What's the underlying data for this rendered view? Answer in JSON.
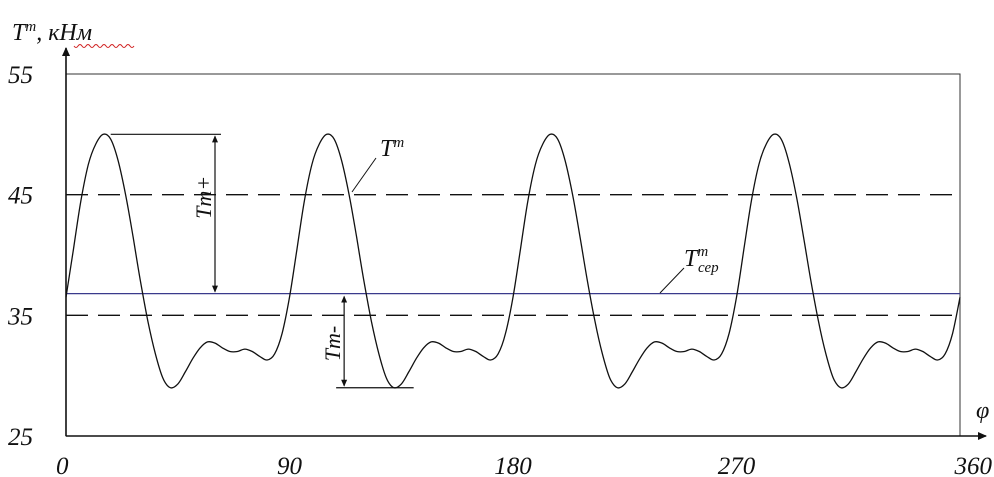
{
  "chart_data": {
    "type": "line",
    "ylabel_symbol": "T",
    "ylabel_sup": "m",
    "ylabel_unit": ", кНм",
    "xlabel": "φ",
    "xticks": [
      0,
      90,
      180,
      270,
      360
    ],
    "yticks": [
      25,
      35,
      45,
      55
    ],
    "xlim": [
      0,
      360
    ],
    "ylim": [
      25,
      55
    ],
    "grid": false,
    "series": [
      {
        "name": "Tm",
        "style": "solid",
        "color": "#111111",
        "x": [
          0,
          3,
          6,
          9,
          12,
          15,
          18,
          21,
          24,
          27,
          30,
          33,
          36,
          39,
          42,
          45,
          48,
          51,
          54,
          57,
          60,
          63,
          66,
          69,
          72,
          75,
          78,
          81,
          84,
          87,
          90
        ],
        "y": [
          36.5,
          40.5,
          44.5,
          47.5,
          49.2,
          50.0,
          49.6,
          47.8,
          45.0,
          41.5,
          37.8,
          34.5,
          31.8,
          29.8,
          29.0,
          29.3,
          30.3,
          31.4,
          32.3,
          32.8,
          32.7,
          32.3,
          32.0,
          32.0,
          32.2,
          32.0,
          31.6,
          31.3,
          31.8,
          33.5,
          36.5
        ],
        "period": 90
      }
    ],
    "reference_lines": [
      {
        "id": "upper-dashed",
        "y": 45,
        "style": "dashed",
        "color": "#111111"
      },
      {
        "id": "lower-dashed",
        "y": 35,
        "style": "dashed",
        "color": "#111111"
      },
      {
        "id": "mean",
        "y": 36.8,
        "style": "solid",
        "color": "#3a3a8c"
      }
    ],
    "annotations": {
      "curve_label": {
        "symbol": "T",
        "sup": "m"
      },
      "mean_label": {
        "symbol": "T",
        "sup": "m",
        "sub": "сер"
      },
      "amp_plus": {
        "text": "Tm+",
        "x": 60,
        "y_from": 36.8,
        "y_to": 50
      },
      "amp_minus": {
        "text": "Tm-",
        "x": 112,
        "y_from": 36.8,
        "y_to": 29
      }
    }
  }
}
